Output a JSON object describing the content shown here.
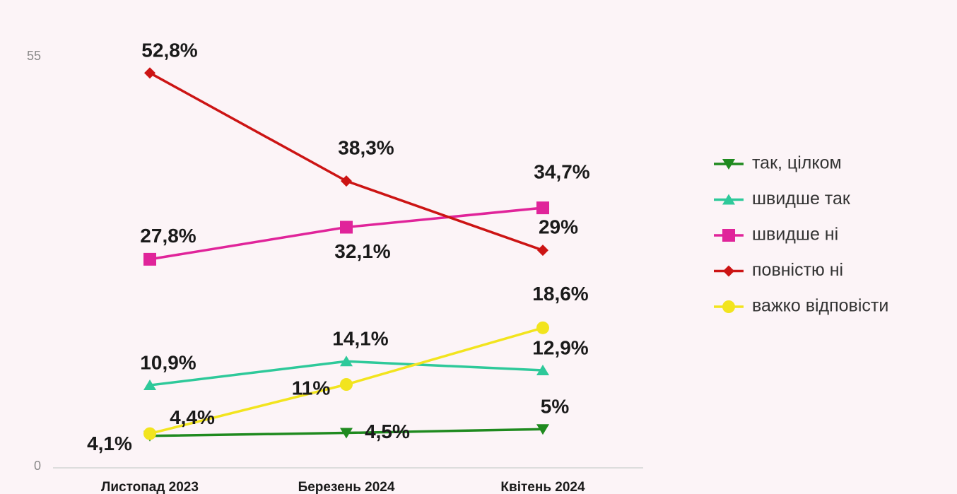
{
  "chart_data": {
    "type": "line",
    "categories": [
      "Листопад 2023",
      "Березень 2024",
      "Квітень 2024"
    ],
    "ylim": [
      0,
      55
    ],
    "yticks": [
      0,
      55
    ],
    "series": [
      {
        "name": "так, цілком",
        "color": "#1f8a1f",
        "marker": "triangle-down",
        "values": [
          4.1,
          4.5,
          5
        ],
        "value_labels": [
          "4,1%",
          "4,5%",
          "5%"
        ]
      },
      {
        "name": "швидше так",
        "color": "#2ec99a",
        "marker": "triangle-up",
        "values": [
          10.9,
          14.1,
          12.9
        ],
        "value_labels": [
          "10,9%",
          "14,1%",
          "12,9%"
        ]
      },
      {
        "name": "швидше ні",
        "color": "#e0249a",
        "marker": "square",
        "values": [
          27.8,
          32.1,
          34.7
        ],
        "value_labels": [
          "27,8%",
          "32,1%",
          "34,7%"
        ]
      },
      {
        "name": "повністю ні",
        "color": "#cc1414",
        "marker": "diamond",
        "values": [
          52.8,
          38.3,
          29
        ],
        "value_labels": [
          "52,8%",
          "38,3%",
          "29%"
        ]
      },
      {
        "name": "важко відповісти",
        "color": "#f2e41e",
        "marker": "circle",
        "values": [
          4.4,
          11,
          18.6
        ],
        "value_labels": [
          "4,4%",
          "11%",
          "18,6%"
        ]
      }
    ]
  }
}
